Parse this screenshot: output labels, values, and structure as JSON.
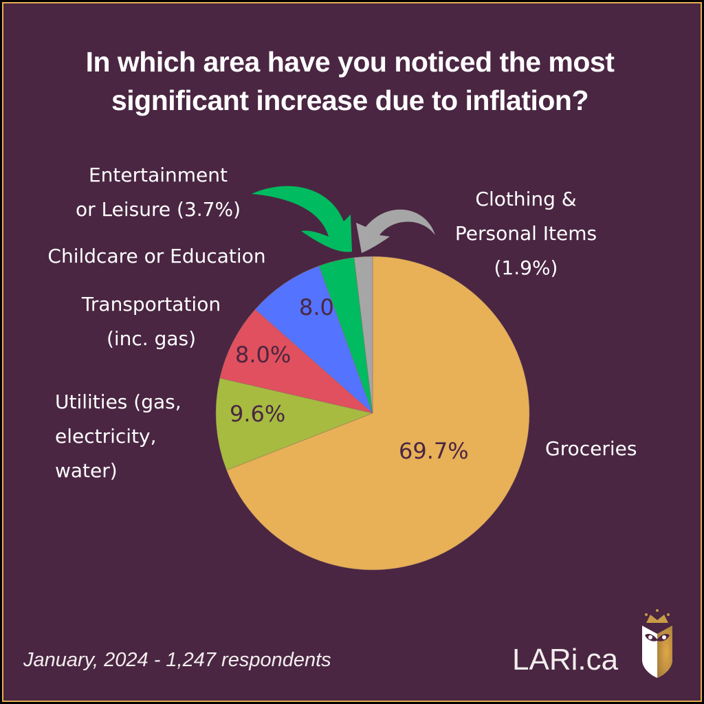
{
  "title_line1": "In which area have you noticed the most",
  "title_line2": "significant increase due to inflation?",
  "labels": {
    "entertainment_1": "Entertainment",
    "entertainment_2": "or Leisure (3.7%)",
    "childcare": "Childcare or Education",
    "transport_1": "Transportation",
    "transport_2": "(inc. gas)",
    "utilities_1": "Utilities (gas,",
    "utilities_2": "electricity,",
    "utilities_3": "water)",
    "clothing_1": "Clothing &",
    "clothing_2": "Personal Items",
    "clothing_3": "(1.9%)",
    "groceries": "Groceries"
  },
  "slice_labels": {
    "groceries": "69.7%",
    "utilities": "9.6%",
    "transportation": "8.0%",
    "childcare": "8.0"
  },
  "footer": "January, 2024 - 1,247 respondents",
  "brand": "LARi.ca",
  "colors": {
    "background": "#4a2642",
    "border_gold": "#e8b04f",
    "groceries": "#e8b057",
    "utilities": "#a6bb40",
    "transportation": "#e0505e",
    "childcare": "#5473ff",
    "entertainment": "#00bb5f",
    "clothing": "#a6a6a6"
  },
  "chart_data": {
    "type": "pie",
    "title": "In which area have you noticed the most significant increase due to inflation?",
    "categories": [
      "Groceries",
      "Utilities (gas, electricity, water)",
      "Transportation (inc. gas)",
      "Childcare or Education",
      "Entertainment or Leisure",
      "Clothing & Personal Items"
    ],
    "values": [
      69.7,
      9.6,
      8.0,
      8.0,
      3.7,
      1.9
    ],
    "unit": "%",
    "start_angle": "12 o'clock, clockwise",
    "annotations": [
      "Green arrow pointing to Entertainment or Leisure (3.7%) slice",
      "Gray arrow pointing to Clothing & Personal Items (1.9%) slice"
    ],
    "note": "January, 2024 - 1,247 respondents"
  }
}
